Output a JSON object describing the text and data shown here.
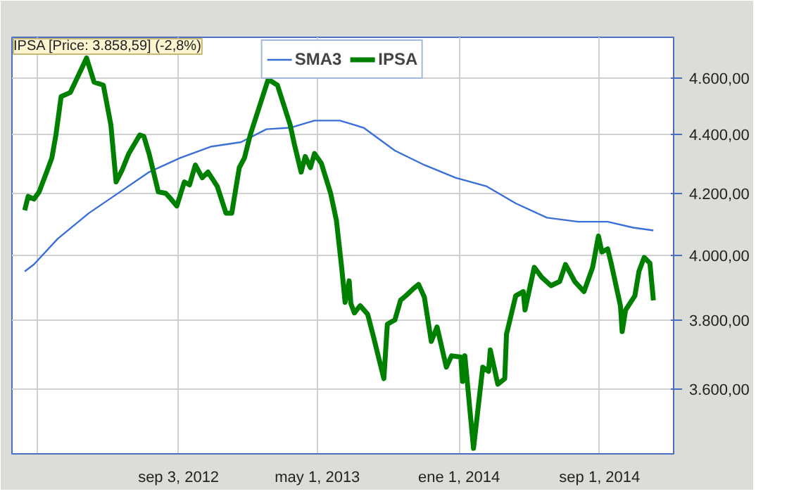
{
  "chart_data": {
    "type": "line",
    "annotations": [
      "IPSA [Price: 3.858,59] (-2,8%)"
    ],
    "series": [
      {
        "name": "SMA3",
        "color": "#3a6fd8",
        "x": [
          "2011-12-12",
          "2011-12-28",
          "2012-02-07",
          "2012-04-01",
          "2012-05-25",
          "2012-07-14",
          "2012-09-06",
          "2012-10-30",
          "2012-12-20",
          "2013-02-02",
          "2013-03-15",
          "2013-04-26",
          "2013-06-09",
          "2013-07-20",
          "2013-09-12",
          "2013-11-02",
          "2013-12-26",
          "2014-02-18",
          "2014-04-09",
          "2014-06-02",
          "2014-07-26",
          "2014-09-15",
          "2014-10-29",
          "2014-12-03"
        ],
        "values": [
          3949,
          3971,
          4052,
          4135,
          4205,
          4271,
          4319,
          4358,
          4373,
          4418,
          4423,
          4448,
          4448,
          4423,
          4344,
          4295,
          4252,
          4223,
          4167,
          4120,
          4107,
          4107,
          4088,
          4079
        ]
      },
      {
        "name": "IPSA",
        "color": "#008000",
        "x": [
          "2011-12-12",
          "2011-12-18",
          "2011-12-28",
          "2012-01-06",
          "2012-01-19",
          "2012-01-28",
          "2012-02-04",
          "2012-02-13",
          "2012-02-29",
          "2012-03-28",
          "2012-04-10",
          "2012-04-26",
          "2012-05-09",
          "2012-05-18",
          "2012-05-28",
          "2012-06-09",
          "2012-06-28",
          "2012-07-05",
          "2012-07-14",
          "2012-07-30",
          "2012-08-12",
          "2012-08-21",
          "2012-08-31",
          "2012-09-13",
          "2012-09-22",
          "2012-10-02",
          "2012-10-14",
          "2012-10-24",
          "2012-11-09",
          "2012-11-24",
          "2012-12-04",
          "2012-12-17",
          "2012-12-26",
          "2013-01-05",
          "2013-02-05",
          "2013-02-21",
          "2013-03-15",
          "2013-03-22",
          "2013-04-03",
          "2013-04-10",
          "2013-04-19",
          "2013-04-26",
          "2013-05-08",
          "2013-05-24",
          "2013-06-03",
          "2013-06-12",
          "2013-06-18",
          "2013-06-25",
          "2013-06-28",
          "2013-07-04",
          "2013-07-14",
          "2013-07-27",
          "2013-08-05",
          "2013-08-24",
          "2013-08-30",
          "2013-09-12",
          "2013-09-22",
          "2013-10-01",
          "2013-10-14",
          "2013-10-23",
          "2013-11-02",
          "2013-11-14",
          "2013-11-24",
          "2013-12-10",
          "2013-12-19",
          "2014-01-04",
          "2014-01-07",
          "2014-01-11",
          "2014-01-26",
          "2014-02-11",
          "2014-02-21",
          "2014-02-24",
          "2014-03-09",
          "2014-03-21",
          "2014-03-24",
          "2014-04-09",
          "2014-04-22",
          "2014-04-25",
          "2014-05-11",
          "2014-05-24",
          "2014-06-09",
          "2014-06-24",
          "2014-07-04",
          "2014-07-20",
          "2014-08-05",
          "2014-08-20",
          "2014-08-30",
          "2014-09-05",
          "2014-09-15",
          "2014-09-21",
          "2014-10-07",
          "2014-10-10",
          "2014-10-16",
          "2014-11-01",
          "2014-11-08",
          "2014-11-17",
          "2014-11-27",
          "2014-12-03"
        ],
        "values": [
          4144,
          4190,
          4181,
          4205,
          4271,
          4319,
          4398,
          4533,
          4548,
          4673,
          4585,
          4574,
          4433,
          4238,
          4276,
          4334,
          4398,
          4393,
          4334,
          4205,
          4200,
          4181,
          4158,
          4238,
          4228,
          4295,
          4252,
          4271,
          4223,
          4135,
          4135,
          4286,
          4319,
          4398,
          4595,
          4574,
          4433,
          4368,
          4271,
          4324,
          4286,
          4334,
          4300,
          4200,
          4111,
          3962,
          3854,
          3920,
          3850,
          3822,
          3844,
          3818,
          3758,
          3629,
          3788,
          3801,
          3861,
          3874,
          3896,
          3909,
          3870,
          3737,
          3780,
          3662,
          3695,
          3691,
          3621,
          3695,
          3435,
          3662,
          3650,
          3712,
          3613,
          3629,
          3758,
          3874,
          3887,
          3831,
          3962,
          3931,
          3905,
          3918,
          3971,
          3918,
          3887,
          3962,
          4061,
          4010,
          4020,
          3975,
          3844,
          3766,
          3831,
          3874,
          3949,
          3993,
          3975,
          3860
        ]
      }
    ],
    "xlim": [
      "2011-11-20",
      "2015-01-07"
    ],
    "xticks": [
      {
        "value": "2012-01-02",
        "label": null
      },
      {
        "value": "2012-09-03",
        "label": "sep 3, 2012"
      },
      {
        "value": "2013-05-01",
        "label": "may 1, 2013"
      },
      {
        "value": "2014-01-01",
        "label": "ene 1, 2014"
      },
      {
        "value": "2014-09-01",
        "label": "sep 1, 2014"
      }
    ],
    "ylim": [
      3420,
      4750
    ],
    "yticks": [
      {
        "value": 3600,
        "label": "3.600,00"
      },
      {
        "value": 3800,
        "label": "3.800,00"
      },
      {
        "value": 4000,
        "label": "4.000,00"
      },
      {
        "value": 4200,
        "label": "4.200,00"
      },
      {
        "value": 4400,
        "label": "4.400,00"
      },
      {
        "value": 4600,
        "label": "4.600,00"
      }
    ],
    "log": "y",
    "grid": true,
    "legend": "top"
  }
}
